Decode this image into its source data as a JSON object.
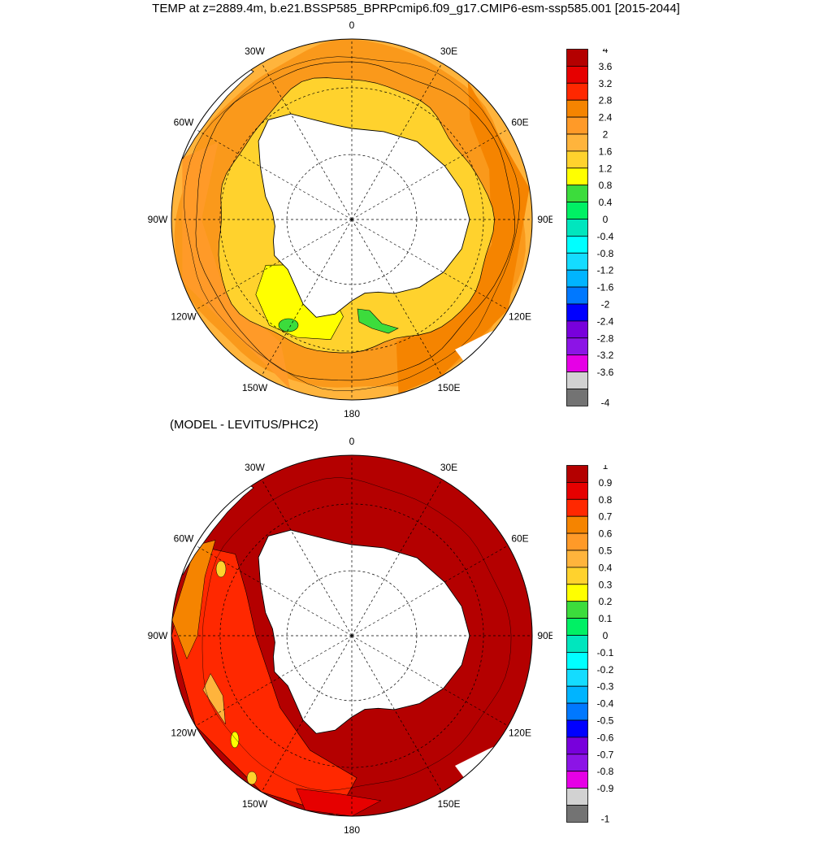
{
  "title": "TEMP at z=2889.4m, b.e21.BSSP585_BPRPcmip6.f09_g17.CMIP6-esm-ssp585.001 [2015-2044]",
  "subtitle": "(MODEL - LEVITUS/PHC2)",
  "lon_labels": [
    "0",
    "30E",
    "60E",
    "90E",
    "120E",
    "150E",
    "180",
    "150W",
    "120W",
    "90W",
    "60W",
    "30W"
  ],
  "panels": [
    {
      "name": "model-temperature",
      "colorbar": {
        "labels": [
          "4",
          "3.6",
          "3.2",
          "2.8",
          "2.4",
          "2",
          "1.6",
          "1.2",
          "0.8",
          "0.4",
          "0",
          "-0.4",
          "-0.8",
          "-1.2",
          "-1.6",
          "-2",
          "-2.4",
          "-2.8",
          "-3.2",
          "-3.6",
          "-4"
        ],
        "colors": [
          "#b40000",
          "#e60000",
          "#ff2800",
          "#f58400",
          "#ff9a28",
          "#ffb43c",
          "#ffd22d",
          "#ffff00",
          "#3cdc3c",
          "#00f064",
          "#00e6be",
          "#00ffff",
          "#14dcff",
          "#00b4ff",
          "#0078ff",
          "#0000ff",
          "#7800dc",
          "#8c14e6",
          "#e600e6",
          "#d2d2d2",
          "#737373"
        ]
      }
    },
    {
      "name": "model-minus-levitus",
      "colorbar": {
        "labels": [
          "1",
          "0.9",
          "0.8",
          "0.7",
          "0.6",
          "0.5",
          "0.4",
          "0.3",
          "0.2",
          "0.1",
          "0",
          "-0.1",
          "-0.2",
          "-0.3",
          "-0.4",
          "-0.5",
          "-0.6",
          "-0.7",
          "-0.8",
          "-0.9",
          "-1"
        ],
        "colors": [
          "#b40000",
          "#e60000",
          "#ff2800",
          "#f58400",
          "#ff9a28",
          "#ffb43c",
          "#ffd22d",
          "#ffff00",
          "#3cdc3c",
          "#00f064",
          "#00e6be",
          "#00ffff",
          "#14dcff",
          "#00b4ff",
          "#0078ff",
          "#0000ff",
          "#7800dc",
          "#8c14e6",
          "#e600e6",
          "#d2d2d2",
          "#737373"
        ]
      }
    }
  ]
}
